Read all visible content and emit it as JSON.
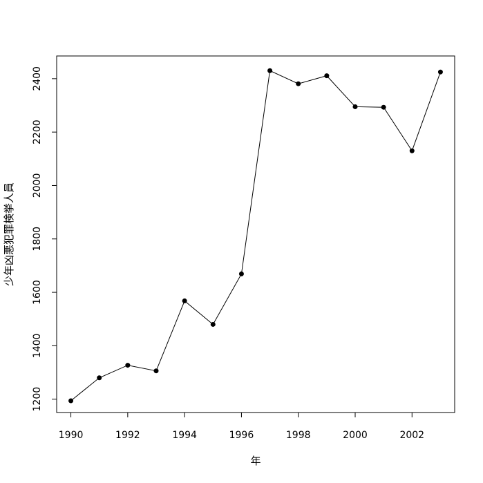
{
  "chart_data": {
    "type": "line",
    "xlabel": "年",
    "ylabel": "少年凶悪犯罪検挙人員",
    "x": [
      1990,
      1991,
      1992,
      1993,
      1994,
      1995,
      1996,
      1997,
      1998,
      1999,
      2000,
      2001,
      2002,
      2003
    ],
    "series": [
      {
        "values": [
          1194,
          1280,
          1327,
          1306,
          1568,
          1480,
          1669,
          2430,
          2381,
          2411,
          2295,
          2293,
          2130,
          2425
        ]
      }
    ],
    "xlim": [
      1989.5,
      2003.5
    ],
    "ylim": [
      1150,
      2485
    ],
    "xticks": [
      "1990",
      "1992",
      "1994",
      "1996",
      "1998",
      "2000",
      "2002"
    ],
    "yticks": [
      "1200",
      "1400",
      "1600",
      "1800",
      "2000",
      "2200",
      "2400"
    ],
    "markers": true,
    "grid": false,
    "colors": {
      "line": "#000000",
      "marker": "#000000",
      "frame": "#000000"
    }
  }
}
